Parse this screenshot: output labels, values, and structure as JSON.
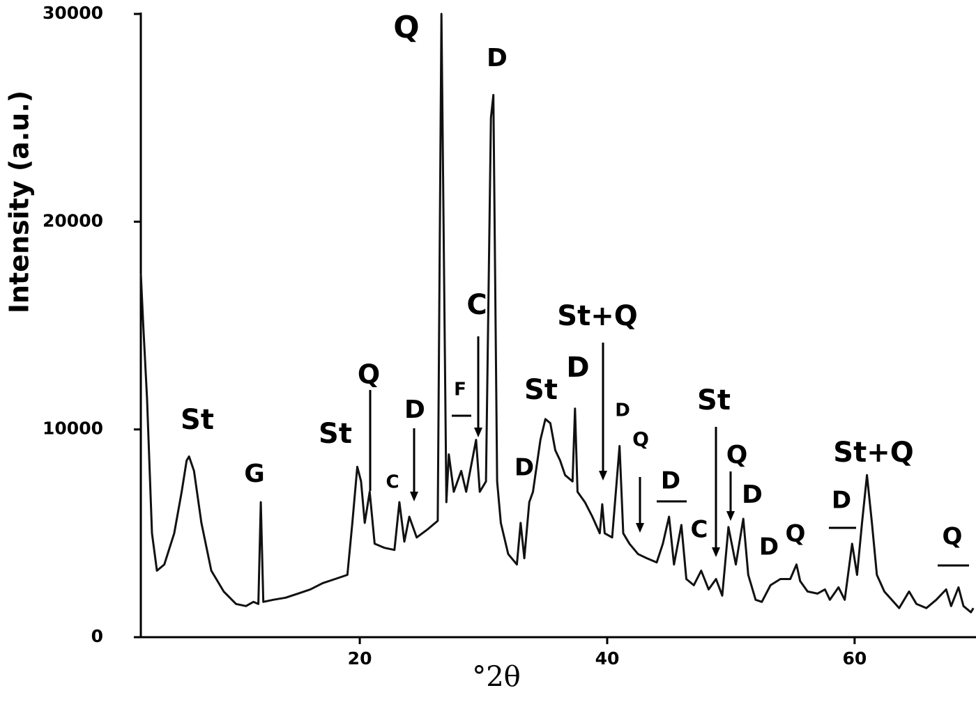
{
  "chart_data": {
    "type": "line",
    "x_label": "°2θ",
    "y_label": "Intensity (a.u.)",
    "xlim": [
      2.3,
      69.7
    ],
    "ylim": [
      0,
      30000
    ],
    "xticks": [
      20,
      40,
      60
    ],
    "yticks": [
      0,
      10000,
      20000,
      30000
    ],
    "color": "#111111",
    "x": [
      2.3,
      2.5,
      2.8,
      3.2,
      3.6,
      4.2,
      5.0,
      5.6,
      6.0,
      6.2,
      6.6,
      7.2,
      8.0,
      9.0,
      10.0,
      10.8,
      11.4,
      11.8,
      12.0,
      12.2,
      13,
      14,
      15,
      16,
      17,
      18,
      19.0,
      19.4,
      19.8,
      20.1,
      20.4,
      20.8,
      21.2,
      22,
      22.8,
      23.2,
      23.6,
      24.0,
      24.6,
      25.5,
      26.3,
      26.6,
      27.0,
      27.2,
      27.6,
      28.2,
      28.6,
      29.4,
      29.7,
      30.2,
      30.6,
      30.8,
      31.1,
      31.4,
      32,
      32.7,
      33.0,
      33.3,
      33.7,
      34.0,
      34.6,
      35.0,
      35.4,
      35.8,
      36.2,
      36.6,
      37.2,
      37.4,
      37.6,
      38.2,
      38.8,
      39.4,
      39.6,
      39.8,
      40.4,
      41.0,
      41.3,
      41.8,
      42.5,
      43.2,
      44.0,
      44.5,
      45.0,
      45.4,
      46.0,
      46.4,
      47.0,
      47.6,
      48.2,
      48.8,
      49.3,
      49.8,
      50.4,
      51.0,
      51.4,
      52.0,
      52.5,
      53.2,
      54,
      54.8,
      55.3,
      55.6,
      56.2,
      57,
      57.6,
      58,
      58.7,
      59.2,
      59.8,
      60.2,
      60.6,
      61.0,
      61.4,
      61.8,
      62.4,
      63.0,
      63.6,
      64.4,
      65.0,
      65.8,
      66.6,
      67.4,
      67.8,
      68.4,
      68.8,
      69.4,
      69.6
    ],
    "values": [
      17500,
      15000,
      11500,
      5000,
      3200,
      3500,
      5000,
      7000,
      8500,
      8700,
      8000,
      5500,
      3200,
      2200,
      1600,
      1500,
      1700,
      1600,
      6500,
      1700,
      1800,
      1900,
      2100,
      2300,
      2600,
      2800,
      3000,
      5500,
      8200,
      7500,
      5500,
      7000,
      4500,
      4300,
      4200,
      6500,
      4600,
      5800,
      4800,
      5200,
      5600,
      30000,
      6500,
      8800,
      7000,
      8000,
      7000,
      9500,
      7000,
      7500,
      25000,
      26100,
      7500,
      5500,
      4000,
      3500,
      5500,
      3800,
      6500,
      7000,
      9500,
      10500,
      10300,
      9000,
      8500,
      7800,
      7500,
      11000,
      7000,
      6500,
      5800,
      5000,
      6400,
      5000,
      4800,
      9200,
      5000,
      4500,
      4000,
      3800,
      3600,
      4500,
      5800,
      3500,
      5400,
      2800,
      2500,
      3200,
      2300,
      2800,
      2000,
      5300,
      3500,
      5700,
      3000,
      1800,
      1700,
      2500,
      2800,
      2800,
      3500,
      2700,
      2200,
      2100,
      2300,
      1800,
      2400,
      1800,
      4500,
      3000,
      5500,
      7800,
      5500,
      3000,
      2200,
      1800,
      1400,
      2200,
      1600,
      1400,
      1800,
      2300,
      1500,
      2400,
      1500,
      1200,
      1400
    ],
    "annotations": [
      "St",
      "G",
      "St",
      "Q",
      "C",
      "D",
      "Q",
      "F",
      "C",
      "D",
      "D",
      "St",
      "D",
      "St+Q",
      "D",
      "Q",
      "D",
      "C",
      "St",
      "Q",
      "D",
      "D",
      "Q",
      "St+Q",
      "D",
      "Q"
    ]
  }
}
